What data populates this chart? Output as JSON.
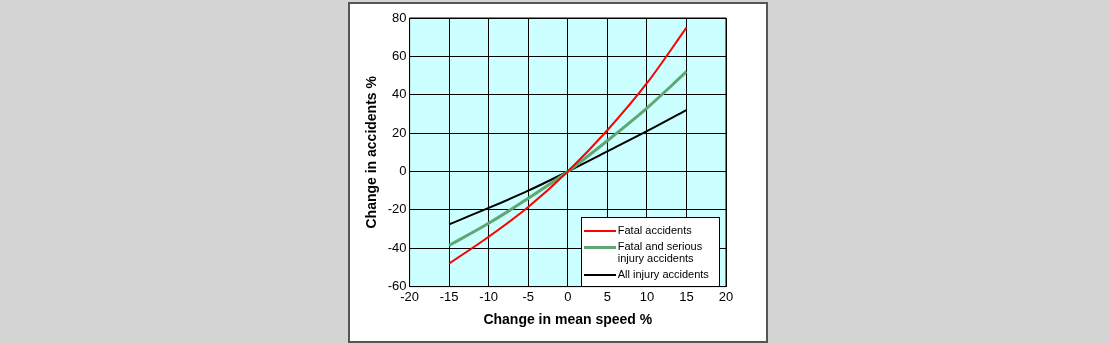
{
  "chart_data": {
    "type": "line",
    "xlabel": "Change in mean speed %",
    "ylabel": "Change in accidents %",
    "x": [
      -15,
      -10,
      -5,
      0,
      5,
      10,
      15
    ],
    "series": [
      {
        "name": "Fatal accidents",
        "color": "#ff0000",
        "values": [
          -48,
          -34,
          -18.5,
          0,
          21.5,
          46,
          75
        ]
      },
      {
        "name": "Fatal and serious injury accidents",
        "color": "#5fa873",
        "values": [
          -38.5,
          -27,
          -14,
          0,
          16,
          33,
          52
        ]
      },
      {
        "name": "All injury accidents",
        "color": "#000000",
        "values": [
          -27.5,
          -19,
          -10,
          0,
          10.5,
          21,
          32
        ]
      }
    ],
    "xlim": [
      -20,
      20
    ],
    "xticks": [
      -20,
      -15,
      -10,
      -5,
      0,
      5,
      10,
      15,
      20
    ],
    "ylim": [
      -60,
      80
    ],
    "yticks": [
      -60,
      -40,
      -20,
      0,
      20,
      40,
      60,
      80
    ],
    "grid": true,
    "legend": "bottom right",
    "marker": "none",
    "line_style": "solid"
  }
}
